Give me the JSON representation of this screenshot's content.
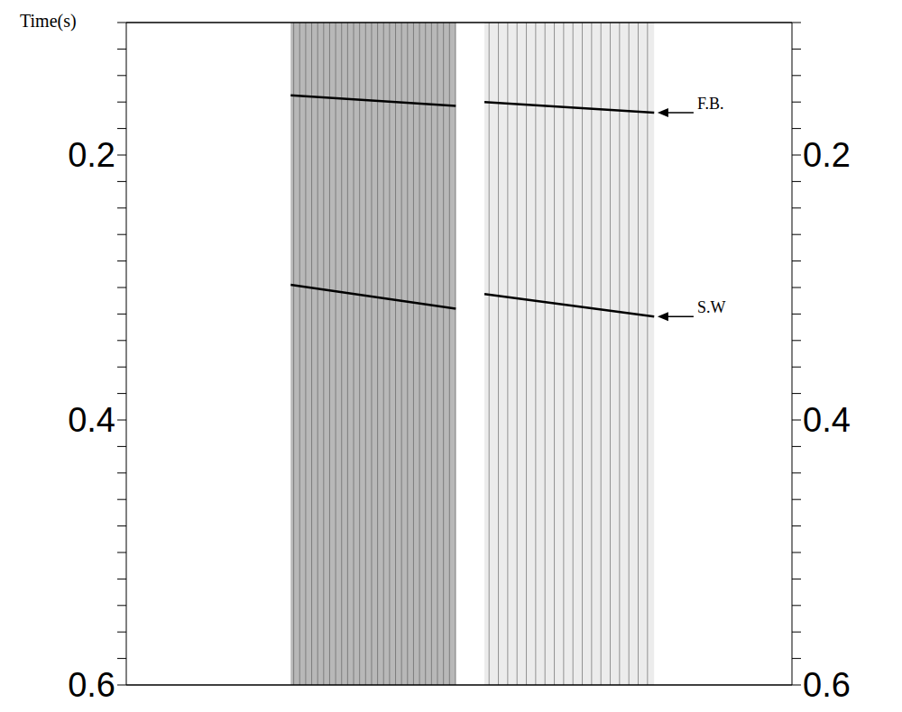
{
  "chart_data": {
    "type": "seismic_section",
    "y_label": "Time(s)",
    "ylim": [
      0.1,
      0.6
    ],
    "yticks": [
      {
        "value": 0.2,
        "label": "0.2"
      },
      {
        "value": 0.4,
        "label": "0.4"
      },
      {
        "value": 0.6,
        "label": "0.6"
      }
    ],
    "minor_yticks": [
      0.1,
      0.12,
      0.14,
      0.16,
      0.18,
      0.2,
      0.22,
      0.24,
      0.26,
      0.28,
      0.3,
      0.32,
      0.34,
      0.36,
      0.38,
      0.4,
      0.42,
      0.44,
      0.46,
      0.48,
      0.5,
      0.52,
      0.54,
      0.56,
      0.58,
      0.6
    ],
    "events": [
      {
        "label": "F.B.",
        "times": [
          [
            0.155,
            0.163
          ],
          [
            0.16,
            0.168
          ]
        ]
      },
      {
        "label": "S.W",
        "times": [
          [
            0.298,
            0.316
          ],
          [
            0.305,
            0.322
          ]
        ]
      }
    ]
  }
}
